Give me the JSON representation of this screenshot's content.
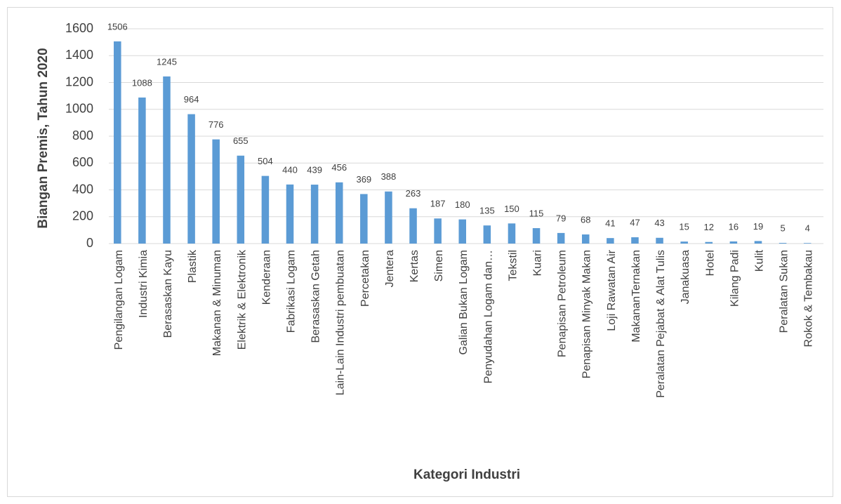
{
  "chart_data": {
    "type": "bar",
    "x_label": "Kategori Industri",
    "y_label": "Biangan Premis, Tahun 2020",
    "categories": [
      "Pengilangan Logam",
      "Industri Kimia",
      "Berasaskan Kayu",
      "Plastik",
      "Makanan & Minuman",
      "Elektrik & Elektronik",
      "Kenderaan",
      "Fabrikasi Logam",
      "Berasaskan Getah",
      "Lain-Lain Industri pembuatan",
      "Percetakan",
      "Jentera",
      "Kertas",
      "Simen",
      "Galian Bukan Logam",
      "Penyudahan Logam dan…",
      "Tekstil",
      "Kuari",
      "Penapisan Petroleum",
      "Penapisan Minyak Makan",
      "Loji Rawatan Air",
      "MakananTernakan",
      "Peralatan Pejabat & Alat Tulis",
      "Janakuasa",
      "Hotel",
      "Kilang Padi",
      "Kulit",
      "Peralatan Sukan",
      "Rokok & Tembakau"
    ],
    "values": [
      1506,
      1088,
      1245,
      964,
      776,
      655,
      504,
      440,
      439,
      456,
      369,
      388,
      263,
      187,
      180,
      135,
      150,
      115,
      79,
      68,
      41,
      47,
      43,
      15,
      12,
      16,
      19,
      5,
      4
    ],
    "color": "#5b9bd5",
    "ylim": [
      0,
      1600
    ],
    "yticks": [
      0,
      200,
      400,
      600,
      800,
      1000,
      1200,
      1400,
      1600
    ],
    "grid": true
  }
}
